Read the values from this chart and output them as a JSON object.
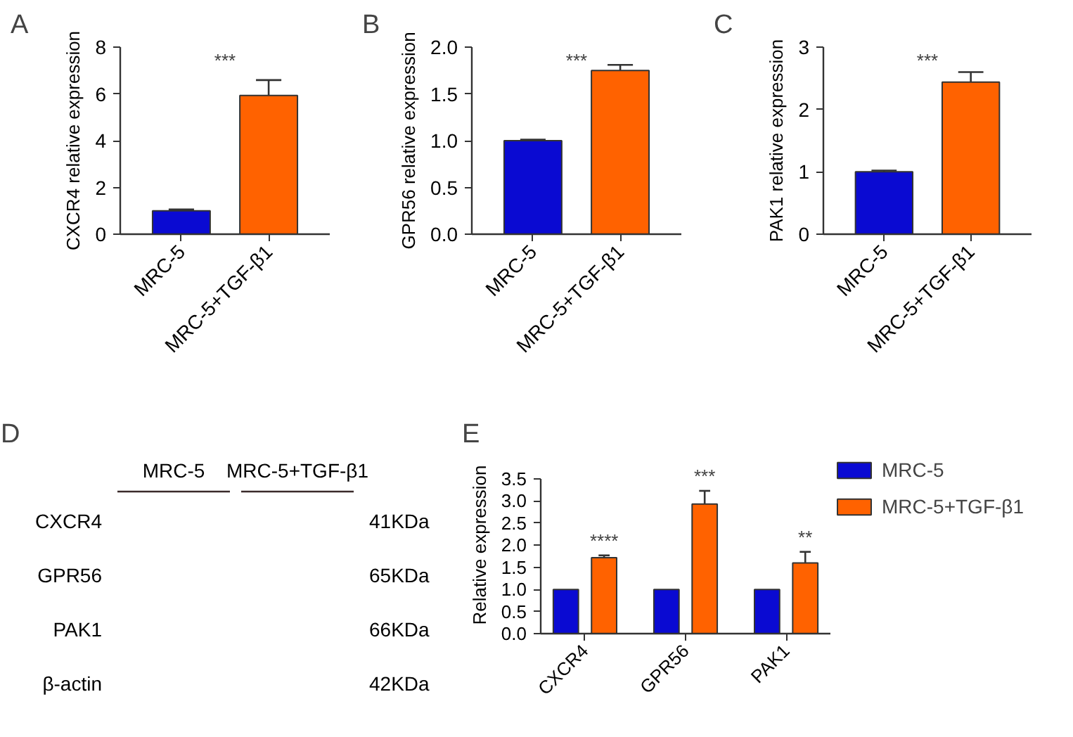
{
  "chart_data": [
    {
      "type": "bar",
      "title": "A",
      "ylabel": "CXCR4 relative expression",
      "categories": [
        "MRC-5",
        "MRC-5+TGF-β1"
      ],
      "values": [
        1.0,
        5.93
      ],
      "colors": [
        "#0a0ad2",
        "#ff6200"
      ],
      "errors": [
        0.06,
        0.66
      ],
      "ylim": [
        0,
        8
      ],
      "yticks": [
        0,
        2,
        4,
        6,
        8
      ],
      "grid": false,
      "annotations": [
        "***"
      ]
    },
    {
      "type": "bar",
      "title": "B",
      "ylabel": "GPR56 relative expression",
      "categories": [
        "MRC-5",
        "MRC-5+TGF-β1"
      ],
      "values": [
        1.0,
        1.75
      ],
      "colors": [
        "#0a0ad2",
        "#ff6200"
      ],
      "errors": [
        0.01,
        0.06
      ],
      "ylim": [
        0,
        2
      ],
      "yticks": [
        {
          "value": 0,
          "label": "0.0"
        },
        0.5,
        {
          "value": 1,
          "label": "1.0"
        },
        1.5,
        {
          "value": 2,
          "label": "2.0"
        }
      ],
      "grid": false,
      "annotations": [
        "***"
      ]
    },
    {
      "type": "bar",
      "title": "C",
      "ylabel": "PAK1 relative expression",
      "categories": [
        "MRC-5",
        "MRC-5+TGF-β1"
      ],
      "values": [
        1.0,
        2.44
      ],
      "colors": [
        "#0a0ad2",
        "#ff6200"
      ],
      "errors": [
        0.02,
        0.16
      ],
      "ylim": [
        0,
        3
      ],
      "yticks": [
        0,
        1,
        2,
        3
      ],
      "grid": false,
      "annotations": [
        "***"
      ]
    },
    {
      "type": "other",
      "title": "D",
      "categories": [
        "MRC-5",
        "MRC-5+TGF-β1"
      ],
      "y_categories": [
        "CXCR4",
        "GPR56",
        "PAK1",
        "β-actin"
      ],
      "y2_categories": [
        "41KDa",
        "65KDa",
        "66KDa",
        "42KDa"
      ]
    },
    {
      "type": "bar",
      "title": "E",
      "ylabel": "Relative expression",
      "categories": [
        "CXCR4",
        "GPR56",
        "PAK1"
      ],
      "series": [
        {
          "name": "MRC-5",
          "color": "#0a0ad2",
          "values": [
            1.0,
            1.0,
            1.0
          ]
        },
        {
          "name": "MRC-5+TGF-β1",
          "color": "#ff6200",
          "values": [
            1.72,
            2.93,
            1.6
          ],
          "errors": [
            0.05,
            0.3,
            0.25
          ]
        }
      ],
      "ylim": [
        0,
        3.5
      ],
      "yticks": [
        {
          "value": 0,
          "label": "0.0"
        },
        0.5,
        {
          "value": 1,
          "label": "1.0"
        },
        1.5,
        {
          "value": 2,
          "label": "2.0"
        },
        2.5,
        {
          "value": 3,
          "label": "3.0"
        },
        3.5
      ],
      "grid": false,
      "legend": "top right",
      "annotations": [
        "****",
        "***",
        "**"
      ]
    }
  ]
}
